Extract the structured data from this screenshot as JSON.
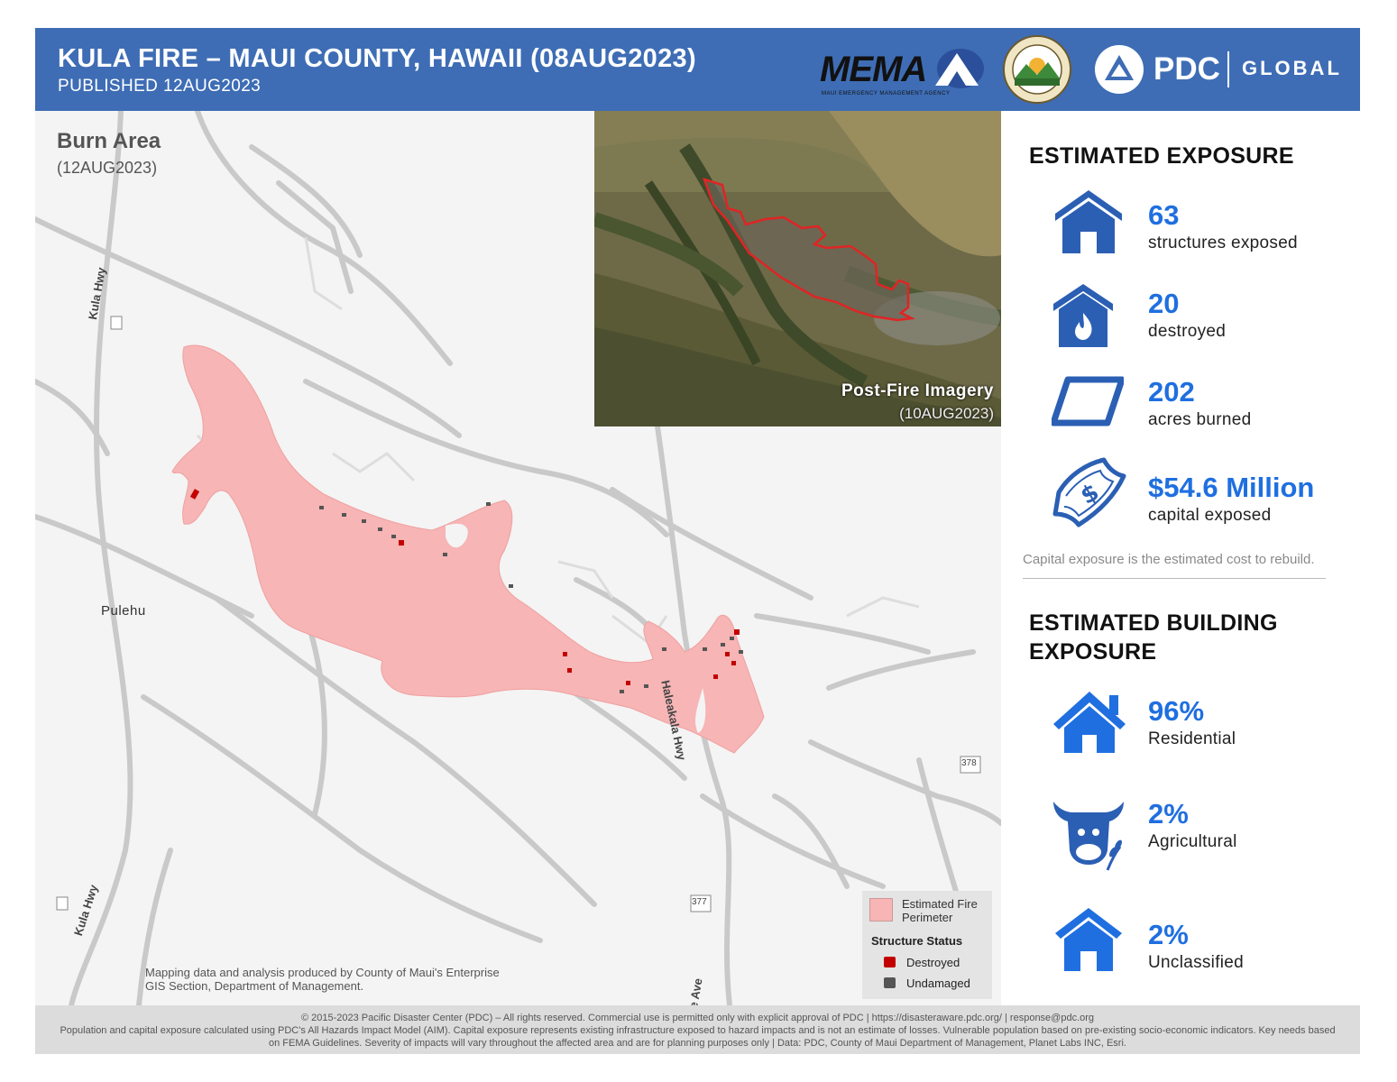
{
  "header": {
    "title": "KULA FIRE – MAUI COUNTY, HAWAII (08AUG2023)",
    "subtitle": "PUBLISHED 12AUG2023",
    "mema_logo_text": "MEMA",
    "mema_logo_subtext": "MAUI EMERGENCY MANAGEMENT AGENCY",
    "pdc_logo_text": "PDC",
    "pdc_logo_global": "GLOBAL"
  },
  "map": {
    "title": "Burn Area",
    "date": "(12AUG2023)",
    "inset_title": "Post-Fire Imagery",
    "inset_date": "(10AUG2023)",
    "place_label": "Pulehu",
    "road_labels": [
      "Kula Hwy",
      "Kula Hwy",
      "Haleakala Hwy",
      "e Ave"
    ],
    "route_shields": [
      "378",
      "377"
    ],
    "credit": "Mapping data and analysis produced by County of Maui's Enterprise GIS Section, Department of Management.",
    "legend": {
      "perimeter_label": "Estimated Fire Perimeter",
      "status_title": "Structure Status",
      "destroyed_label": "Destroyed",
      "undamaged_label": "Undamaged",
      "perimeter_color": "#f7b5b5",
      "destroyed_color": "#c30000",
      "undamaged_color": "#555555"
    }
  },
  "exposure": {
    "title": "ESTIMATED EXPOSURE",
    "items": [
      {
        "value": "63",
        "label": "structures exposed",
        "icon": "house-icon"
      },
      {
        "value": "20",
        "label": "destroyed",
        "icon": "house-fire-icon"
      },
      {
        "value": "202",
        "label": "acres burned",
        "icon": "parcel-icon"
      },
      {
        "value": "$54.6 Million",
        "label": "capital exposed",
        "icon": "money-icon"
      }
    ],
    "note": "Capital exposure is the estimated cost to rebuild."
  },
  "building": {
    "title_line1": "ESTIMATED BUILDING",
    "title_line2": "EXPOSURE",
    "items": [
      {
        "value": "96%",
        "label": "Residential",
        "icon": "residential-house-icon"
      },
      {
        "value": "2%",
        "label": "Agricultural",
        "icon": "cow-icon"
      },
      {
        "value": "2%",
        "label": "Unclassified",
        "icon": "house-icon"
      }
    ]
  },
  "footer": {
    "line1": "© 2015-2023 Pacific Disaster Center (PDC) – All rights reserved. Commercial use is permitted only with explicit approval of PDC  |  https://disasteraware.pdc.org/  |  response@pdc.org",
    "line2": "Population and capital exposure calculated using PDC's All Hazards Impact Model (AIM). Capital exposure represents existing infrastructure exposed to hazard impacts and is not an estimate of losses. Vulnerable population based on pre-existing socio-economic indicators. Key needs based",
    "line3": "on FEMA Guidelines. Severity of impacts will vary throughout the affected area and are for planning purposes only | Data: PDC, County of Maui Department of Management, Planet Labs INC, Esri."
  },
  "colors": {
    "header_bg": "#3e6db5",
    "accent": "#1f6fe0",
    "icon_blue": "#2b5fb4"
  }
}
